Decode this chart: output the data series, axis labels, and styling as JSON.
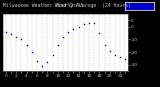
{
  "title_left": "Milwaukee Weather Wind Chill",
  "title_right": "Hourly Average  (24 Hours)",
  "hours": [
    0,
    1,
    2,
    3,
    4,
    5,
    6,
    7,
    8,
    9,
    10,
    11,
    12,
    13,
    14,
    15,
    16,
    17,
    18,
    19,
    20,
    21,
    22,
    23
  ],
  "wind_chill": [
    -4,
    -6,
    -8,
    -10,
    -14,
    -20,
    -27,
    -31,
    -28,
    -22,
    -14,
    -8,
    -4,
    -2,
    0,
    2,
    3,
    3,
    -5,
    -14,
    -19,
    -22,
    -24,
    -25
  ],
  "dot_color": "#0000ff",
  "plot_bg": "#ffffff",
  "fig_bg": "#000000",
  "header_bg": "#000000",
  "legend_fill": "#0000cc",
  "legend_edge": "#ffffff",
  "ylim": [
    -35,
    10
  ],
  "yticks": [
    5,
    0,
    -10,
    -20,
    -30
  ],
  "ytick_labels": [
    "5",
    "0",
    "-10",
    "-20",
    "-30"
  ],
  "grid_color": "#808080",
  "tick_label_fontsize": 3.2,
  "title_fontsize": 3.5,
  "title_color": "#c0c0c0",
  "spine_color": "#808080",
  "xtick_labels": [
    "0",
    "",
    "2",
    "",
    "4",
    "",
    "6",
    "",
    "8",
    "",
    "10",
    "",
    "12",
    "",
    "14",
    "",
    "16",
    "",
    "18",
    "",
    "20",
    "",
    "22",
    ""
  ]
}
